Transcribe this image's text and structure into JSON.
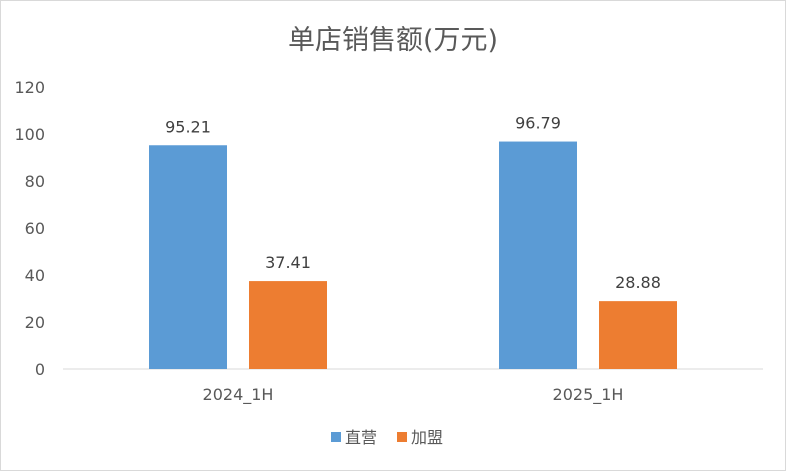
{
  "chart_data": {
    "type": "bar",
    "title": "单店销售额(万元)",
    "categories": [
      "2024_1H",
      "2025_1H"
    ],
    "series": [
      {
        "name": "直营",
        "values": [
          95.21,
          96.79
        ],
        "color": "#5B9BD5"
      },
      {
        "name": "加盟",
        "values": [
          37.41,
          28.88
        ],
        "color": "#ED7D31"
      }
    ],
    "data_labels": [
      [
        "95.21",
        "96.79"
      ],
      [
        "37.41",
        "28.88"
      ]
    ],
    "ylim": [
      0,
      120
    ],
    "yticks": [
      0,
      20,
      40,
      60,
      80,
      100,
      120
    ],
    "grid": false,
    "legend": "bottom-center"
  }
}
